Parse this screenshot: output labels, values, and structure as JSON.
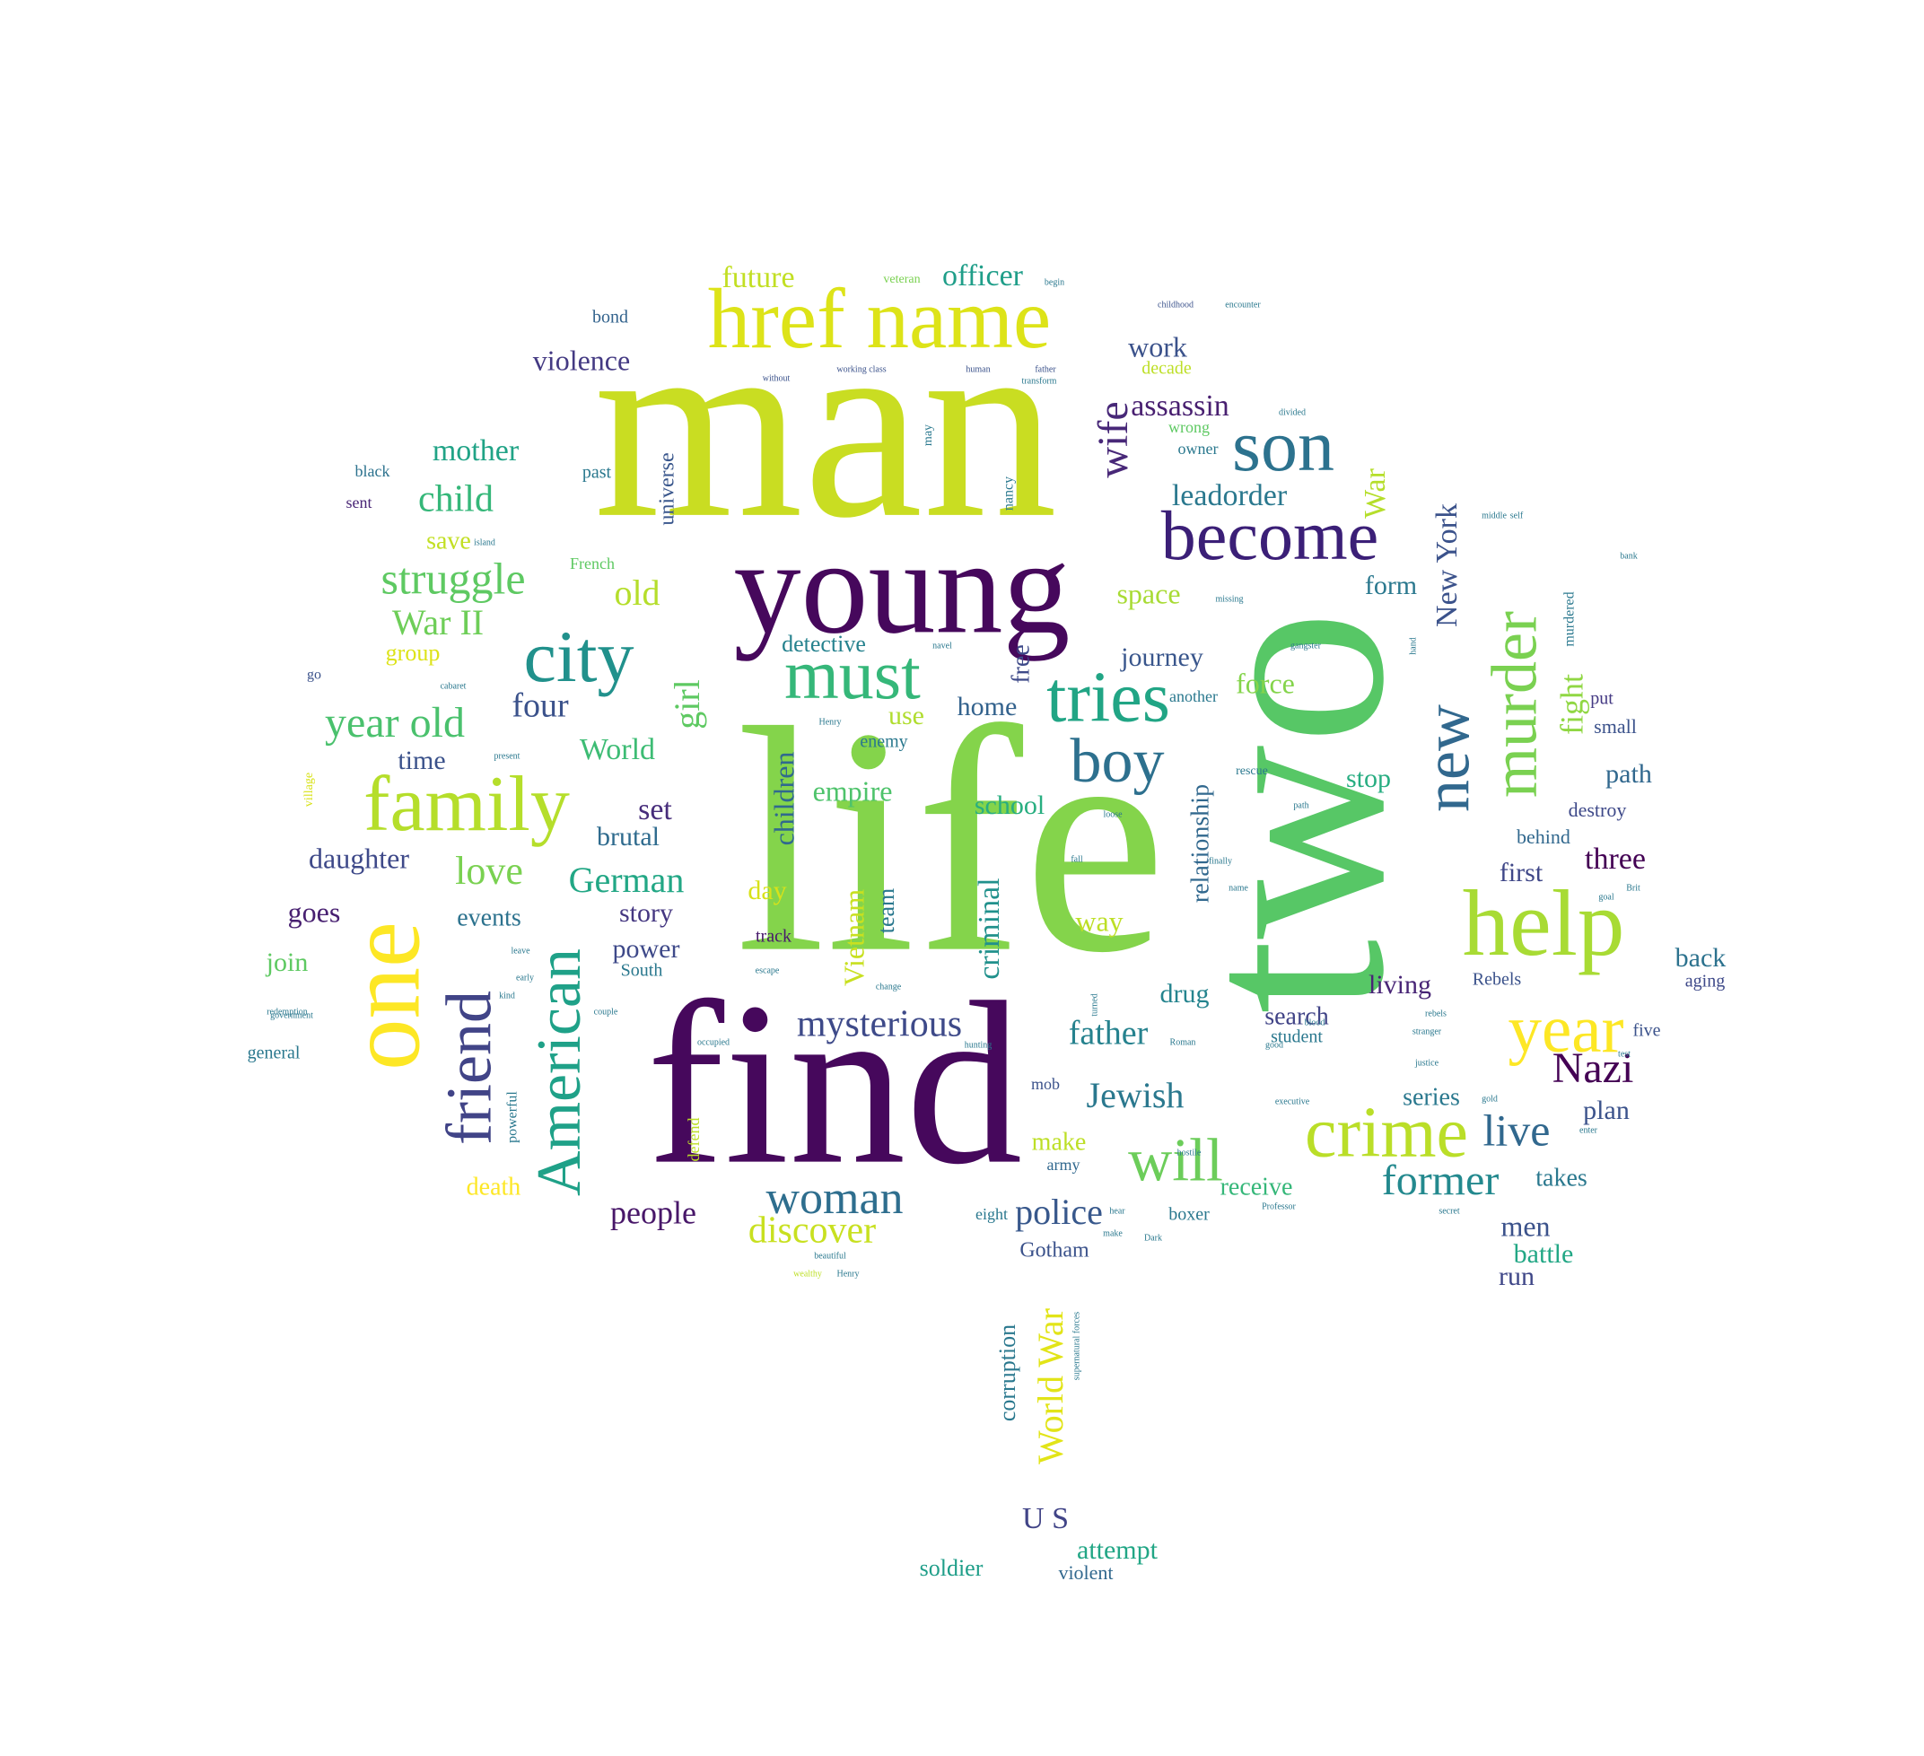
{
  "words": [
    {
      "text": "man",
      "color": "#c9dd22"
    },
    {
      "text": "life",
      "color": "#84d44b"
    },
    {
      "text": "two",
      "color": "#57c766"
    },
    {
      "text": "find",
      "color": "#46085c"
    },
    {
      "text": "young",
      "color": "#46085c"
    },
    {
      "text": "href name",
      "color": "#dde318"
    },
    {
      "text": "one",
      "color": "#fde725"
    },
    {
      "text": "help",
      "color": "#a8db34"
    },
    {
      "text": "become",
      "color": "#3b1f77"
    },
    {
      "text": "son",
      "color": "#2c728e"
    },
    {
      "text": "family",
      "color": "#b5de2b"
    },
    {
      "text": "city",
      "color": "#21918c"
    },
    {
      "text": "must",
      "color": "#35b779"
    },
    {
      "text": "tries",
      "color": "#21a585"
    },
    {
      "text": "boy",
      "color": "#2d708e"
    },
    {
      "text": "year",
      "color": "#fde725"
    },
    {
      "text": "crime",
      "color": "#bade28"
    },
    {
      "text": "new",
      "color": "#31688e"
    },
    {
      "text": "murder",
      "color": "#7ad151"
    },
    {
      "text": "friend",
      "color": "#414487"
    },
    {
      "text": "American",
      "color": "#1fa188"
    },
    {
      "text": "will",
      "color": "#6ccd5a"
    },
    {
      "text": "woman",
      "color": "#2e6e8e"
    },
    {
      "text": "struggle",
      "color": "#5ec962"
    },
    {
      "text": "year old",
      "color": "#4ac16d"
    },
    {
      "text": "mysterious",
      "color": "#3e4a89"
    },
    {
      "text": "Nazi",
      "color": "#440154"
    },
    {
      "text": "live",
      "color": "#31688e"
    },
    {
      "text": "former",
      "color": "#23898e"
    },
    {
      "text": "discover",
      "color": "#c8e020"
    },
    {
      "text": "police",
      "color": "#38588c"
    },
    {
      "text": "Jewish",
      "color": "#2a788e"
    },
    {
      "text": "father",
      "color": "#26828e"
    },
    {
      "text": "German",
      "color": "#22a785"
    },
    {
      "text": "people",
      "color": "#481769"
    },
    {
      "text": "love",
      "color": "#7ad151"
    },
    {
      "text": "wife",
      "color": "#482878"
    },
    {
      "text": "child",
      "color": "#35b779"
    },
    {
      "text": "mother",
      "color": "#20a386"
    },
    {
      "text": "old",
      "color": "#b5de2b"
    },
    {
      "text": "War II",
      "color": "#6ece58"
    },
    {
      "text": "four",
      "color": "#3b528b"
    },
    {
      "text": "girl",
      "color": "#5ec962"
    },
    {
      "text": "World",
      "color": "#3dbc74"
    },
    {
      "text": "set",
      "color": "#472d7b"
    },
    {
      "text": "brutal",
      "color": "#2f6b8e"
    },
    {
      "text": "officer",
      "color": "#1f9e89"
    },
    {
      "text": "work",
      "color": "#3b528b"
    },
    {
      "text": "future",
      "color": "#c2df23"
    },
    {
      "text": "violence",
      "color": "#443a83"
    },
    {
      "text": "assassin",
      "color": "#481f70"
    },
    {
      "text": "leadorder",
      "color": "#2a788e"
    },
    {
      "text": "New York",
      "color": "#3b528b"
    },
    {
      "text": "War",
      "color": "#b5de2b"
    },
    {
      "text": "space",
      "color": "#a8db34"
    },
    {
      "text": "journey",
      "color": "#39568c"
    },
    {
      "text": "form",
      "color": "#2a788e"
    },
    {
      "text": "force",
      "color": "#84d44b"
    },
    {
      "text": "fight",
      "color": "#90d743"
    },
    {
      "text": "home",
      "color": "#33628d"
    },
    {
      "text": "use",
      "color": "#b0dd2f"
    },
    {
      "text": "empire",
      "color": "#4ec36b"
    },
    {
      "text": "school",
      "color": "#28ae80"
    },
    {
      "text": "stop",
      "color": "#27ad81"
    },
    {
      "text": "path",
      "color": "#31688e"
    },
    {
      "text": "three",
      "color": "#440154"
    },
    {
      "text": "first",
      "color": "#3f4788"
    },
    {
      "text": "back",
      "color": "#2c728e"
    },
    {
      "text": "living",
      "color": "#482576"
    },
    {
      "text": "search",
      "color": "#414487"
    },
    {
      "text": "drug",
      "color": "#25848e"
    },
    {
      "text": "way",
      "color": "#bddf26"
    },
    {
      "text": "criminal",
      "color": "#21918c"
    },
    {
      "text": "relationship",
      "color": "#31688e"
    },
    {
      "text": "Vietnam",
      "color": "#c8e020"
    },
    {
      "text": "team",
      "color": "#2a788e"
    },
    {
      "text": "day",
      "color": "#d8e219"
    },
    {
      "text": "story",
      "color": "#453781"
    },
    {
      "text": "power",
      "color": "#3e4989"
    },
    {
      "text": "events",
      "color": "#2c728e"
    },
    {
      "text": "goes",
      "color": "#482071"
    },
    {
      "text": "daughter",
      "color": "#3e4989"
    },
    {
      "text": "join",
      "color": "#5ec962"
    },
    {
      "text": "time",
      "color": "#3b528b"
    },
    {
      "text": "save",
      "color": "#c2df23"
    },
    {
      "text": "group",
      "color": "#dde318"
    },
    {
      "text": "children",
      "color": "#30698e"
    },
    {
      "text": "detective",
      "color": "#26828e"
    },
    {
      "text": "free",
      "color": "#3e4a89"
    },
    {
      "text": "make",
      "color": "#bddf26"
    },
    {
      "text": "death",
      "color": "#fde725"
    },
    {
      "text": "series",
      "color": "#2a788e"
    },
    {
      "text": "plan",
      "color": "#3b528b"
    },
    {
      "text": "takes",
      "color": "#2a788e"
    },
    {
      "text": "men",
      "color": "#3b528b"
    },
    {
      "text": "battle",
      "color": "#22a785"
    },
    {
      "text": "run",
      "color": "#3f4788"
    },
    {
      "text": "receive",
      "color": "#35b779"
    },
    {
      "text": "World War",
      "color": "#e2e418"
    },
    {
      "text": "corruption",
      "color": "#2a788e"
    },
    {
      "text": "U S",
      "color": "#414487"
    },
    {
      "text": "attempt",
      "color": "#21a685"
    },
    {
      "text": "soldier",
      "color": "#1f9e89"
    },
    {
      "text": "violent",
      "color": "#31688e"
    },
    {
      "text": "Gotham",
      "color": "#3b528b"
    },
    {
      "text": "bond",
      "color": "#33638d"
    },
    {
      "text": "black",
      "color": "#2c728e"
    },
    {
      "text": "sent",
      "color": "#482475"
    },
    {
      "text": "past",
      "color": "#2a788e"
    },
    {
      "text": "universe",
      "color": "#39568c"
    },
    {
      "text": "go",
      "color": "#3b528b"
    },
    {
      "text": "destroy",
      "color": "#3e4989"
    },
    {
      "text": "behind",
      "color": "#31688e"
    },
    {
      "text": "small",
      "color": "#3b528b"
    },
    {
      "text": "put",
      "color": "#443983"
    },
    {
      "text": "five",
      "color": "#3b528b"
    },
    {
      "text": "aging",
      "color": "#3e4989"
    },
    {
      "text": "Rebels",
      "color": "#3b528b"
    },
    {
      "text": "general",
      "color": "#2a788e"
    },
    {
      "text": "student",
      "color": "#2a788e"
    },
    {
      "text": "track",
      "color": "#481a6c"
    },
    {
      "text": "South",
      "color": "#2a788e"
    },
    {
      "text": "enemy",
      "color": "#2a788e"
    },
    {
      "text": "mob",
      "color": "#3b528b"
    },
    {
      "text": "eight",
      "color": "#2a788e"
    },
    {
      "text": "army",
      "color": "#31688e"
    },
    {
      "text": "boxer",
      "color": "#2a788e"
    },
    {
      "text": "decade",
      "color": "#bddf26"
    },
    {
      "text": "wrong",
      "color": "#5ec962"
    },
    {
      "text": "owner",
      "color": "#2a788e"
    },
    {
      "text": "French",
      "color": "#5ec962"
    },
    {
      "text": "rescue",
      "color": "#2a788e"
    },
    {
      "text": "murdered",
      "color": "#2a788e"
    },
    {
      "text": "another",
      "color": "#2a788e"
    },
    {
      "text": "nancy",
      "color": "#2a788e"
    },
    {
      "text": "may",
      "color": "#2a788e"
    },
    {
      "text": "powerful",
      "color": "#2a788e"
    },
    {
      "text": "defend",
      "color": "#bddf26"
    },
    {
      "text": "village",
      "color": "#d8e219"
    },
    {
      "text": "veteran",
      "color": "#7ad151"
    },
    {
      "text": "begin",
      "color": "#2a788e"
    },
    {
      "text": "childhood",
      "color": "#3b528b"
    },
    {
      "text": "without",
      "color": "#3b528b"
    },
    {
      "text": "working class",
      "color": "#3b528b"
    },
    {
      "text": "human",
      "color": "#3b528b"
    },
    {
      "text": "father",
      "color": "#3b528b"
    },
    {
      "text": "redemption",
      "color": "#2a788e"
    },
    {
      "text": "government",
      "color": "#2a788e"
    },
    {
      "text": "island",
      "color": "#2a788e"
    },
    {
      "text": "gangster",
      "color": "#2a788e"
    },
    {
      "text": "rebels",
      "color": "#2a788e"
    },
    {
      "text": "Henry",
      "color": "#2a788e"
    },
    {
      "text": "stranger",
      "color": "#2a788e"
    },
    {
      "text": "justice",
      "color": "#2a788e"
    },
    {
      "text": "executive",
      "color": "#2a788e"
    },
    {
      "text": "middle",
      "color": "#2a788e"
    },
    {
      "text": "hand",
      "color": "#2a788e"
    },
    {
      "text": "wealthy",
      "color": "#bddf26"
    },
    {
      "text": "beautiful",
      "color": "#2a788e"
    },
    {
      "text": "occupied",
      "color": "#2a788e"
    },
    {
      "text": "couple",
      "color": "#2a788e"
    },
    {
      "text": "change",
      "color": "#2a788e"
    },
    {
      "text": "escape",
      "color": "#2a788e"
    },
    {
      "text": "leave",
      "color": "#2a788e"
    },
    {
      "text": "early",
      "color": "#2a788e"
    },
    {
      "text": "hunting",
      "color": "#2a788e"
    },
    {
      "text": "Professor",
      "color": "#2a788e"
    },
    {
      "text": "hostile",
      "color": "#2a788e"
    },
    {
      "text": "Dark",
      "color": "#2a788e"
    },
    {
      "text": "gold",
      "color": "#2a788e"
    },
    {
      "text": "Roman",
      "color": "#2a788e"
    },
    {
      "text": "turned",
      "color": "#2a788e"
    },
    {
      "text": "navel",
      "color": "#2a788e"
    },
    {
      "text": "present",
      "color": "#2a788e"
    },
    {
      "text": "finally",
      "color": "#2a788e"
    },
    {
      "text": "cabaret",
      "color": "#2a788e"
    },
    {
      "text": "path",
      "color": "#2a788e"
    },
    {
      "text": "transform",
      "color": "#2a788e"
    },
    {
      "text": "Henry",
      "color": "#2a788e"
    },
    {
      "text": "loose",
      "color": "#2a788e"
    },
    {
      "text": "bank",
      "color": "#2a788e"
    },
    {
      "text": "secret",
      "color": "#2a788e"
    },
    {
      "text": "fall",
      "color": "#2a788e"
    },
    {
      "text": "goal",
      "color": "#2a788e"
    },
    {
      "text": "test",
      "color": "#2a788e"
    },
    {
      "text": "kind",
      "color": "#2a788e"
    },
    {
      "text": "encounter",
      "color": "#2a788e"
    },
    {
      "text": "missing",
      "color": "#2a788e"
    },
    {
      "text": "Brit",
      "color": "#2a788e"
    },
    {
      "text": "enter",
      "color": "#2a788e"
    },
    {
      "text": "self",
      "color": "#2a788e"
    },
    {
      "text": "blood",
      "color": "#2a788e"
    },
    {
      "text": "good",
      "color": "#2a788e"
    },
    {
      "text": "divided",
      "color": "#2a788e"
    },
    {
      "text": "supernatural forces",
      "color": "#2a788e"
    },
    {
      "text": "hear",
      "color": "#2a788e"
    },
    {
      "text": "name",
      "color": "#2a788e"
    },
    {
      "text": "make",
      "color": "#2a788e"
    }
  ]
}
